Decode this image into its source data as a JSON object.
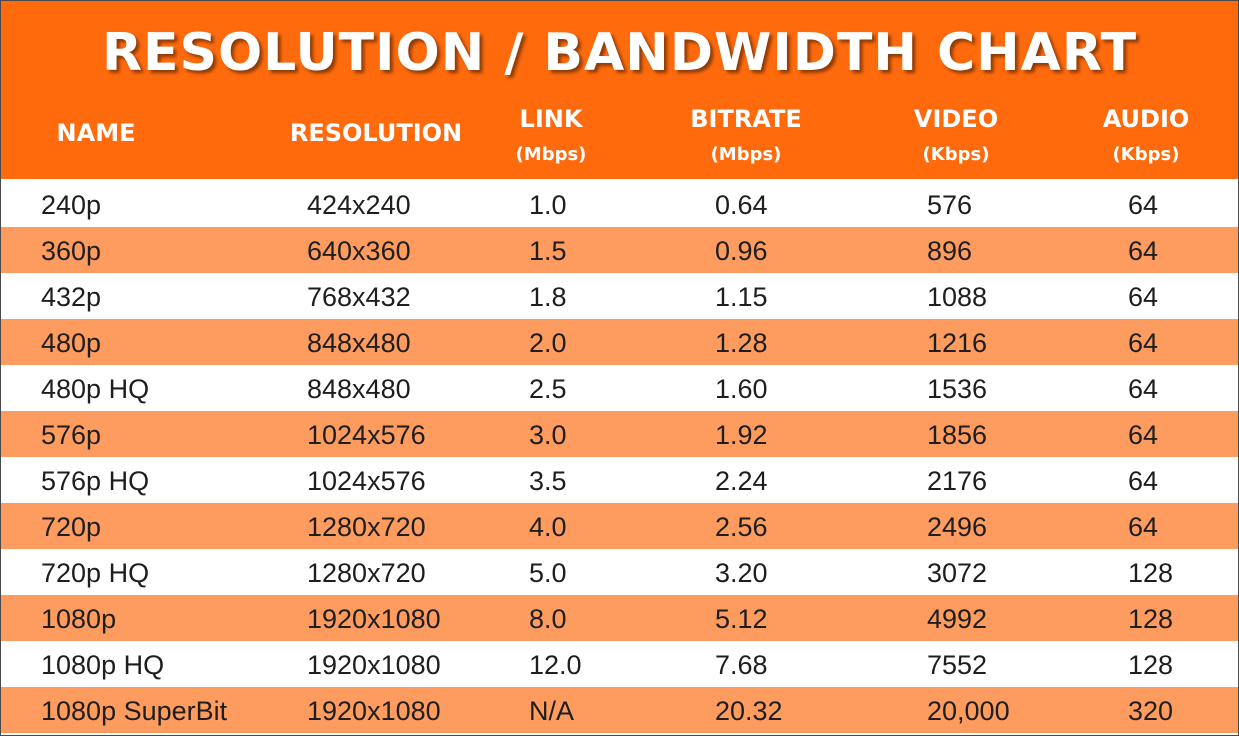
{
  "chart_data": {
    "type": "table",
    "title": "RESOLUTION / BANDWIDTH CHART",
    "columns": [
      {
        "label": "NAME",
        "unit": ""
      },
      {
        "label": "RESOLUTION",
        "unit": ""
      },
      {
        "label": "LINK",
        "unit": "(Mbps)"
      },
      {
        "label": "BITRATE",
        "unit": "(Mbps)"
      },
      {
        "label": "VIDEO",
        "unit": "(Kbps)"
      },
      {
        "label": "AUDIO",
        "unit": "(Kbps)"
      }
    ],
    "rows": [
      [
        "240p",
        "424x240",
        "1.0",
        "0.64",
        "576",
        "64"
      ],
      [
        "360p",
        "640x360",
        "1.5",
        "0.96",
        "896",
        "64"
      ],
      [
        "432p",
        "768x432",
        "1.8",
        "1.15",
        "1088",
        "64"
      ],
      [
        "480p",
        "848x480",
        "2.0",
        "1.28",
        "1216",
        "64"
      ],
      [
        "480p HQ",
        "848x480",
        "2.5",
        "1.60",
        "1536",
        "64"
      ],
      [
        "576p",
        "1024x576",
        "3.0",
        "1.92",
        "1856",
        "64"
      ],
      [
        "576p HQ",
        "1024x576",
        "3.5",
        "2.24",
        "2176",
        "64"
      ],
      [
        "720p",
        "1280x720",
        "4.0",
        "2.56",
        "2496",
        "64"
      ],
      [
        "720p HQ",
        "1280x720",
        "5.0",
        "3.20",
        "3072",
        "128"
      ],
      [
        "1080p",
        "1920x1080",
        "8.0",
        "5.12",
        "4992",
        "128"
      ],
      [
        "1080p HQ",
        "1920x1080",
        "12.0",
        "7.68",
        "7552",
        "128"
      ],
      [
        "1080p SuperBit",
        "1920x1080",
        "N/A",
        "20.32",
        "20,000",
        "320"
      ]
    ]
  },
  "colors": {
    "header": "#ff6a0d",
    "stripe": "#fd9c5e",
    "row": "#ffffff",
    "header_text": "#ffffff",
    "cell_text": "#1e1e1e"
  }
}
